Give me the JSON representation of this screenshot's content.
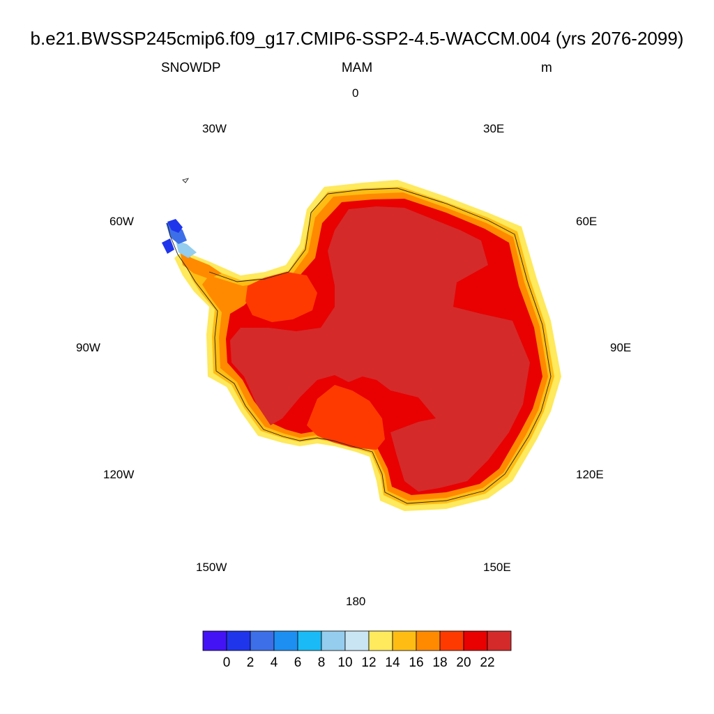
{
  "title": "b.e21.BWSSP245cmip6.f09_g17.CMIP6-SSP2-4.5-WACCM.004 (yrs 2076-2099)",
  "variable": "SNOWDP",
  "season": "MAM",
  "units": "m",
  "longitude_labels": {
    "lon_0": "0",
    "lon_30e": "30E",
    "lon_60e": "60E",
    "lon_90e": "90E",
    "lon_120e": "120E",
    "lon_150e": "150E",
    "lon_180": "180",
    "lon_150w": "150W",
    "lon_120w": "120W",
    "lon_90w": "90W",
    "lon_60w": "60W",
    "lon_30w": "30W"
  },
  "colorbar": {
    "colors": [
      "#4413f5",
      "#1f35ec",
      "#3d6fe8",
      "#1e8ff2",
      "#19baf5",
      "#94cdee",
      "#c9e5f4",
      "#ffe95c",
      "#ffbd14",
      "#ff8a00",
      "#ff3a00",
      "#e90000",
      "#d42a2a"
    ],
    "tick_labels": [
      "0",
      "2",
      "4",
      "6",
      "8",
      "10",
      "12",
      "14",
      "16",
      "18",
      "20",
      "22"
    ]
  },
  "map_colors": {
    "interior": "#d42a2a",
    "high": "#e90000",
    "mid": "#ff3a00",
    "coast_orange": "#ff8a00",
    "coast_amber": "#ffbd14",
    "coast_yellow": "#ffe95c",
    "low_lightblue": "#94cdee",
    "low_blue": "#3d6fe8",
    "low_darkblue": "#1f35ec"
  }
}
